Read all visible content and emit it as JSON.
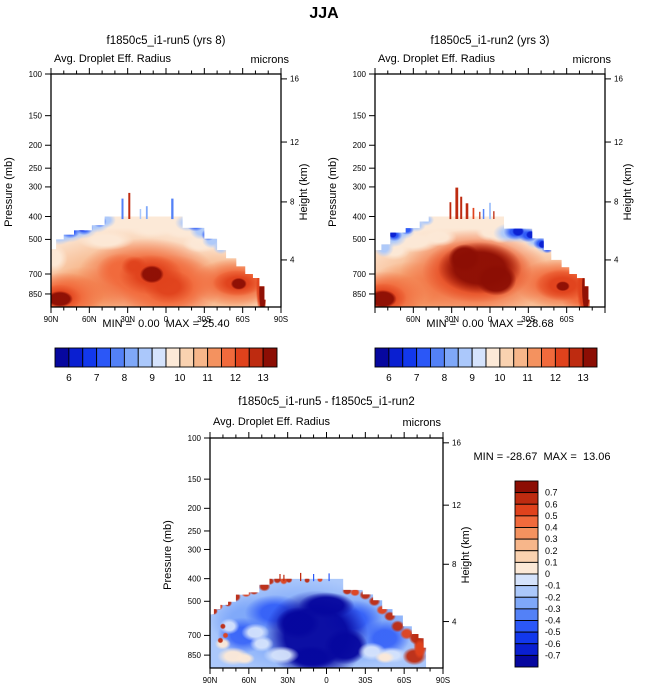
{
  "page_title": "JJA",
  "palette_blue_red_16": [
    "#06079F",
    "#0A1FD1",
    "#1238EC",
    "#2B57F7",
    "#5381F7",
    "#7FA8F9",
    "#ABC8FB",
    "#D5E3FC",
    "#FCE9D7",
    "#FAD2B0",
    "#F7B68A",
    "#F4925F",
    "#F16A3C",
    "#E0421C",
    "#BE2B10",
    "#8C0E04"
  ],
  "chart_data": [
    {
      "type": "heatmap",
      "plot_style": "filled-contour latitude-pressure cross-section",
      "id": "run5",
      "title": "f1850c5_i1-run5 (yrs 8)",
      "field_label": "Avg. Droplet Eff. Radius",
      "units": "microns",
      "stats_text": "MIN =  0.00  MAX = 25.40",
      "min": 0.0,
      "max": 25.4,
      "x_axis": {
        "tick_labels": [
          "90N",
          "60N",
          "30N",
          "0",
          "30S",
          "60S",
          "90S"
        ],
        "minor_ticks_per_interval": 2
      },
      "y_axis_left": {
        "label": "Pressure (mb)",
        "tick_labels": [
          "100",
          "150",
          "200",
          "250",
          "300",
          "400",
          "500",
          "700",
          "850"
        ],
        "scale": "log-pressure"
      },
      "y_axis_right": {
        "label": "Height (km)",
        "tick_labels": [
          "16",
          "12",
          "8",
          "4"
        ]
      },
      "colorbar": {
        "orientation": "horizontal",
        "n_cells": 16,
        "tick_labels": [
          "6",
          "7",
          "8",
          "9",
          "10",
          "11",
          "12",
          "13"
        ],
        "value_range": [
          6,
          13
        ]
      }
    },
    {
      "type": "heatmap",
      "plot_style": "filled-contour latitude-pressure cross-section",
      "id": "run2",
      "title": "f1850c5_i1-run2 (yrs 3)",
      "field_label": "Avg. Droplet Eff. Radius",
      "units": "microns",
      "stats_text": "MIN =  0.00  MAX = 28.68",
      "min": 0.0,
      "max": 28.68,
      "x_axis": {
        "tick_labels": [
          "60N",
          "30N",
          "0",
          "30S",
          "60S"
        ],
        "minor_ticks_per_interval": 2
      },
      "y_axis_left": {
        "label": "Pressure (mb)",
        "tick_labels": [
          "100",
          "150",
          "200",
          "250",
          "300",
          "400",
          "500",
          "700",
          "850"
        ],
        "scale": "log-pressure"
      },
      "y_axis_right": {
        "label": "Height (km)",
        "tick_labels": [
          "16",
          "12",
          "8",
          "4"
        ]
      },
      "colorbar": {
        "orientation": "horizontal",
        "n_cells": 16,
        "tick_labels": [
          "6",
          "7",
          "8",
          "9",
          "10",
          "11",
          "12",
          "13"
        ],
        "value_range": [
          6,
          13
        ]
      }
    },
    {
      "type": "heatmap",
      "plot_style": "filled-contour latitude-pressure cross-section difference",
      "id": "diff",
      "title": "f1850c5_i1-run5 - f1850c5_i1-run2",
      "field_label": "Avg. Droplet Eff. Radius",
      "units": "microns",
      "stats_text": "MIN = -28.67  MAX =  13.06",
      "min": -28.67,
      "max": 13.06,
      "x_axis": {
        "tick_labels": [
          "90N",
          "60N",
          "30N",
          "0",
          "30S",
          "60S",
          "90S"
        ],
        "minor_ticks_per_interval": 2
      },
      "y_axis_left": {
        "label": "Pressure (mb)",
        "tick_labels": [
          "100",
          "150",
          "200",
          "250",
          "300",
          "400",
          "500",
          "700",
          "850"
        ],
        "scale": "log-pressure"
      },
      "y_axis_right": {
        "label": "Height (km)",
        "tick_labels": [
          "16",
          "12",
          "8",
          "4"
        ]
      },
      "colorbar": {
        "orientation": "vertical",
        "n_cells": 16,
        "tick_labels": [
          "0.7",
          "0.6",
          "0.5",
          "0.4",
          "0.3",
          "0.2",
          "0.1",
          "0",
          "-0.1",
          "-0.2",
          "-0.3",
          "-0.4",
          "-0.5",
          "-0.6",
          "-0.7"
        ],
        "value_range": [
          -0.7,
          0.7
        ]
      }
    }
  ]
}
